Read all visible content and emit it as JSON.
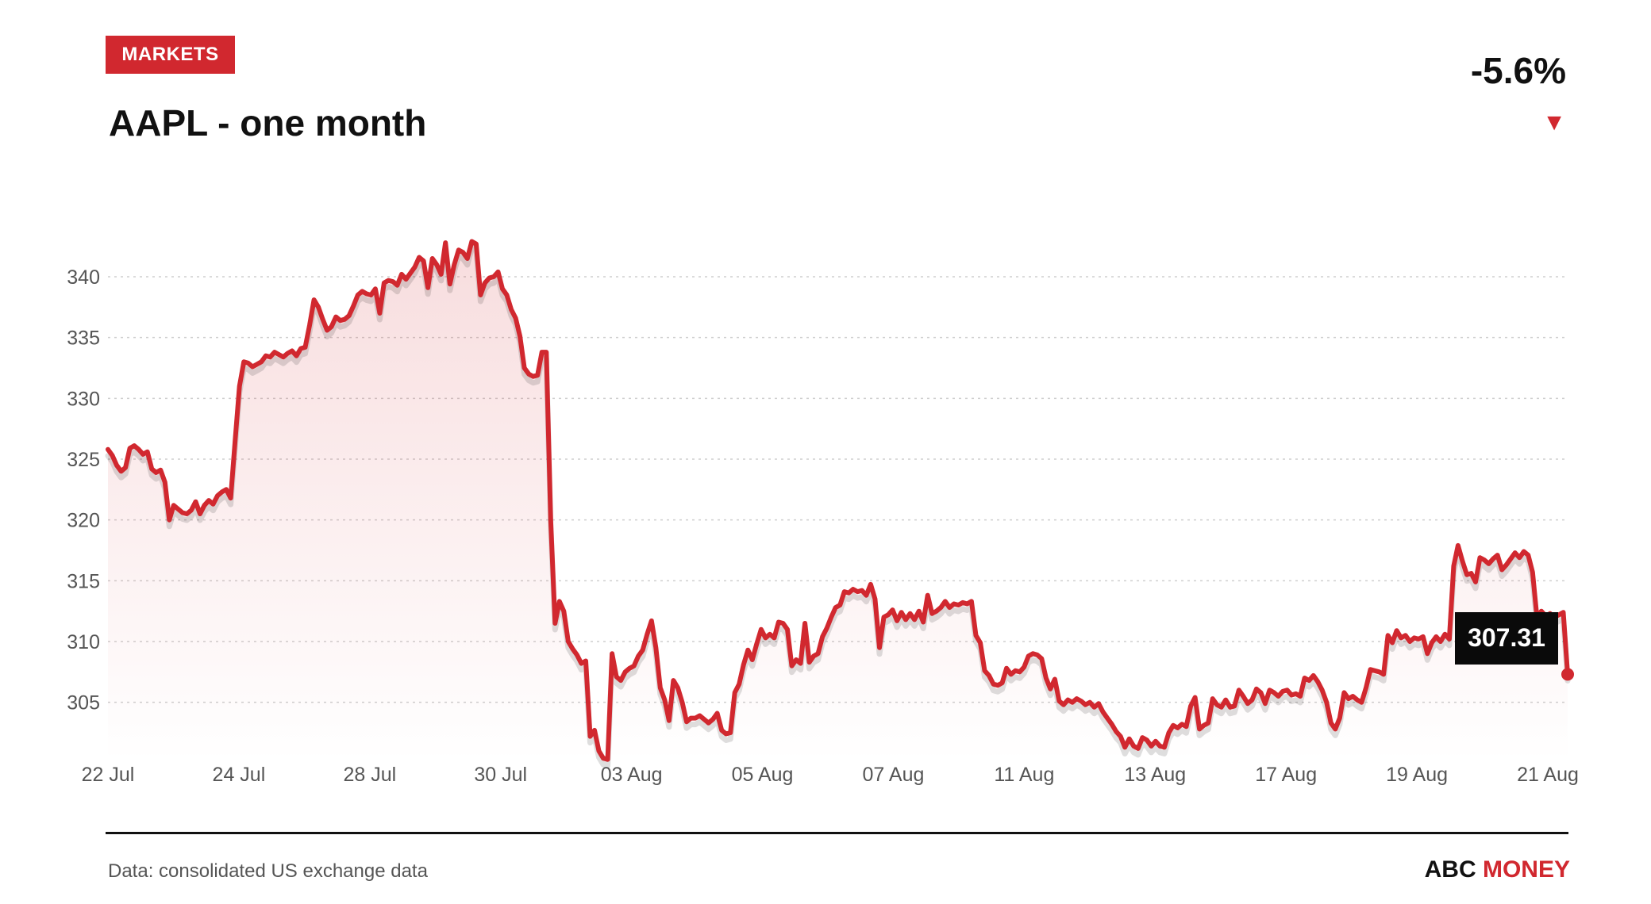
{
  "header": {
    "badge": "MARKETS",
    "title": "AAPL - one month",
    "change": "-5.6%",
    "change_arrow": "▼"
  },
  "footer": {
    "source": "Data: consolidated US exchange data",
    "brand_part1": "ABC",
    "brand_part2": "MONEY"
  },
  "colors": {
    "accent": "#d1282f",
    "grid": "#cfcfcf",
    "text": "#111111"
  },
  "chart_data": {
    "type": "area",
    "title": "AAPL - one month",
    "xlabel": "",
    "ylabel": "",
    "ylim": [
      300,
      343
    ],
    "grid": "horizontal-dotted",
    "y_ticks": [
      305,
      310,
      315,
      320,
      325,
      330,
      335,
      340
    ],
    "x_ticks": [
      "22 Jul",
      "24 Jul",
      "28 Jul",
      "30 Jul",
      "03 Aug",
      "05 Aug",
      "07 Aug",
      "11 Aug",
      "13 Aug",
      "17 Aug",
      "19 Aug",
      "21 Aug"
    ],
    "last_value": "307.31",
    "series": [
      {
        "values": [
          325.8,
          325.3,
          324.5,
          324.0,
          324.3,
          325.9,
          326.1,
          325.8,
          325.4,
          325.6,
          324.2,
          323.9,
          324.1,
          323.1,
          320.0,
          321.2,
          320.9,
          320.6,
          320.5,
          320.8,
          321.5,
          320.5,
          321.2,
          321.6,
          321.3,
          322.0,
          322.3,
          322.5,
          321.8,
          326.5,
          331.0,
          333.0,
          332.9,
          332.6,
          332.8,
          333.0,
          333.5,
          333.4,
          333.8,
          333.6,
          333.4,
          333.7,
          333.9,
          333.5,
          334.1,
          334.2,
          336.0,
          338.1,
          337.5,
          336.5,
          335.6,
          335.9,
          336.7,
          336.4,
          336.5,
          336.8,
          337.6,
          338.5,
          338.8,
          338.6,
          338.5,
          339.0,
          337.0,
          339.5,
          339.7,
          339.6,
          339.3,
          340.2,
          339.8,
          340.3,
          340.8,
          341.6,
          341.3,
          339.1,
          341.5,
          341.0,
          340.2,
          342.8,
          339.4,
          341.0,
          342.2,
          342.0,
          341.5,
          342.9,
          342.7,
          338.5,
          339.5,
          339.9,
          340.0,
          340.4,
          339.0,
          338.5,
          337.3,
          336.6,
          335.1,
          332.5,
          332.0,
          331.8,
          331.9,
          333.8,
          333.8,
          320.0,
          311.5,
          313.3,
          312.5,
          310.0,
          309.4,
          308.9,
          308.2,
          308.4,
          302.2,
          302.7,
          301.0,
          300.4,
          300.3,
          309.0,
          307.1,
          306.8,
          307.5,
          307.8,
          308.0,
          308.8,
          309.3,
          310.6,
          311.7,
          309.5,
          306.2,
          305.2,
          303.5,
          306.8,
          306.2,
          305.0,
          303.4,
          303.7,
          303.7,
          303.9,
          303.6,
          303.3,
          303.6,
          304.1,
          302.7,
          302.4,
          302.5,
          305.8,
          306.5,
          308.1,
          309.3,
          308.5,
          309.8,
          311.0,
          310.3,
          310.6,
          310.3,
          311.6,
          311.5,
          311.0,
          308.0,
          308.5,
          308.2,
          311.5,
          308.3,
          308.8,
          309.0,
          310.4,
          311.1,
          312.0,
          312.8,
          313.0,
          314.1,
          314.0,
          314.3,
          314.1,
          314.2,
          313.8,
          314.7,
          313.5,
          309.5,
          312.0,
          312.2,
          312.6,
          311.7,
          312.4,
          311.8,
          312.3,
          311.8,
          312.5,
          311.6,
          313.8,
          312.3,
          312.5,
          312.8,
          313.3,
          312.8,
          313.1,
          313.0,
          313.2,
          313.1,
          313.3,
          310.5,
          309.9,
          307.6,
          307.2,
          306.5,
          306.4,
          306.6,
          307.8,
          307.3,
          307.6,
          307.5,
          307.9,
          308.8,
          309.0,
          308.9,
          308.6,
          307.0,
          306.1,
          306.9,
          305.1,
          304.8,
          305.2,
          305.0,
          305.3,
          305.1,
          304.8,
          305.0,
          304.6,
          304.9,
          304.2,
          303.7,
          303.2,
          302.6,
          302.2,
          301.3,
          302.0,
          301.4,
          301.2,
          302.1,
          301.9,
          301.4,
          301.8,
          301.4,
          301.3,
          302.5,
          303.1,
          302.9,
          303.2,
          303.0,
          304.7,
          305.4,
          302.8,
          303.1,
          303.3,
          305.3,
          304.8,
          304.6,
          305.2,
          304.6,
          304.7,
          306.0,
          305.5,
          304.9,
          305.2,
          306.1,
          305.8,
          304.9,
          306.0,
          305.8,
          305.5,
          305.9,
          306.0,
          305.6,
          305.7,
          305.5,
          307.0,
          306.8,
          307.2,
          306.7,
          306.0,
          305.0,
          303.3,
          302.8,
          303.7,
          305.8,
          305.3,
          305.5,
          305.2,
          305.0,
          306.2,
          307.7,
          307.6,
          307.5,
          307.3,
          310.5,
          309.9,
          310.9,
          310.3,
          310.5,
          310.0,
          310.3,
          310.2,
          310.4,
          309.0,
          309.9,
          310.4,
          310.0,
          310.6,
          310.2,
          316.2,
          317.9,
          316.6,
          315.5,
          315.6,
          314.9,
          316.9,
          316.7,
          316.4,
          316.8,
          317.1,
          315.9,
          316.3,
          316.8,
          317.3,
          316.9,
          317.4,
          317.1,
          315.7,
          312.0,
          312.5,
          312.1,
          312.3,
          312.0,
          312.2,
          312.4,
          307.3
        ]
      }
    ]
  }
}
